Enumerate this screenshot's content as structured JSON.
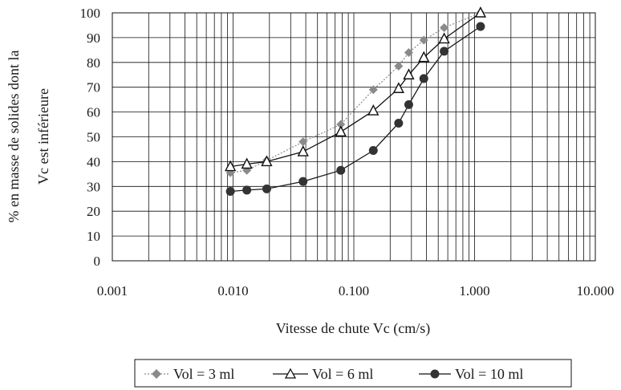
{
  "chart_data": {
    "type": "scatter",
    "x_scale": "log",
    "xlim": [
      0.001,
      10
    ],
    "ylim": [
      0,
      100
    ],
    "xlabel": "Vitesse de chute Vc (cm/s)",
    "ylabel_line1": "% en masse de solides dont la",
    "ylabel_line2": "Vc est inférieure",
    "x_ticks": [
      "0.001",
      "0.010",
      "0.100",
      "1.000",
      "10.000"
    ],
    "y_ticks": [
      "0",
      "10",
      "20",
      "30",
      "40",
      "50",
      "60",
      "70",
      "80",
      "90",
      "100"
    ],
    "grid": true,
    "legend_position": "bottom-center",
    "series": [
      {
        "name": "Vol = 3 ml",
        "marker": "diamond",
        "line": "dotted",
        "color": "#8a8a8a",
        "x": [
          0.0095,
          0.013,
          0.019,
          0.038,
          0.078,
          0.145,
          0.235,
          0.285,
          0.38,
          0.56,
          1.12
        ],
        "y": [
          35.5,
          36.5,
          40.5,
          48,
          55,
          69,
          78.5,
          84,
          89,
          94,
          100
        ]
      },
      {
        "name": "Vol = 6 ml",
        "marker": "triangle",
        "line": "solid",
        "color": "#111111",
        "x": [
          0.0095,
          0.013,
          0.019,
          0.038,
          0.078,
          0.145,
          0.235,
          0.285,
          0.38,
          0.56,
          1.12
        ],
        "y": [
          38,
          39,
          40,
          44,
          52,
          60.5,
          69.5,
          75,
          82,
          89.5,
          100
        ]
      },
      {
        "name": "Vol = 10 ml",
        "marker": "circle",
        "line": "solid",
        "color": "#1a1a1a",
        "x": [
          0.0095,
          0.013,
          0.019,
          0.038,
          0.078,
          0.145,
          0.235,
          0.285,
          0.38,
          0.56,
          1.12
        ],
        "y": [
          28,
          28.5,
          29,
          32,
          36.5,
          44.5,
          55.5,
          63,
          73.5,
          84.5,
          94.5
        ]
      }
    ]
  }
}
